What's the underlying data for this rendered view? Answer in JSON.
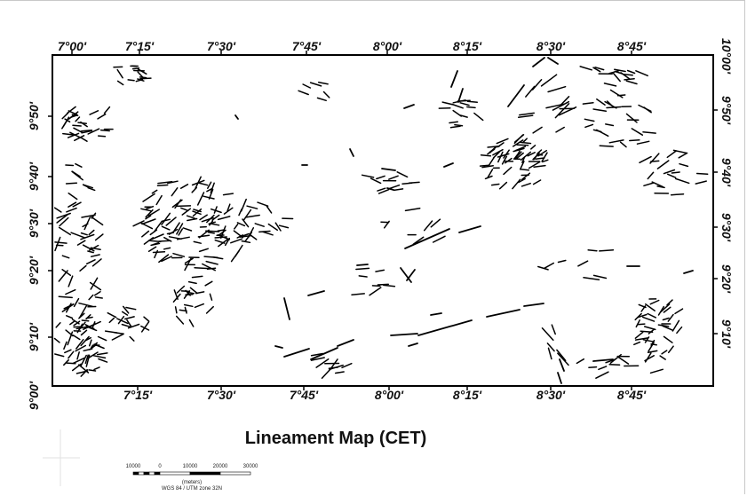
{
  "map": {
    "title": "Lineament Map (CET)",
    "top_ticks": [
      "7°00'",
      "7°15'",
      "7°30'",
      "7°45'",
      "8°00'",
      "8°15'",
      "8°30'",
      "8°45'"
    ],
    "bottom_ticks": [
      "7°15'",
      "7°30'",
      "7°45'",
      "8°00'",
      "8°15'",
      "8°30'",
      "8°45'"
    ],
    "left_ticks": [
      "9°50'",
      "9°40'",
      "9°30'",
      "9°20'",
      "9°10'",
      "9°00'"
    ],
    "right_ticks": [
      "10°00'",
      "9°50'",
      "9°40'",
      "9°30'",
      "9°20'",
      "9°10'"
    ],
    "scale_bar": {
      "labels": [
        "10000",
        "0",
        "10000",
        "20000",
        "30000"
      ],
      "units": "(meters)",
      "projection": "WGS 84 / UTM zone 32N"
    },
    "colors": {
      "frame": "#000000",
      "lineament": "#000000",
      "background": "#ffffff"
    }
  }
}
